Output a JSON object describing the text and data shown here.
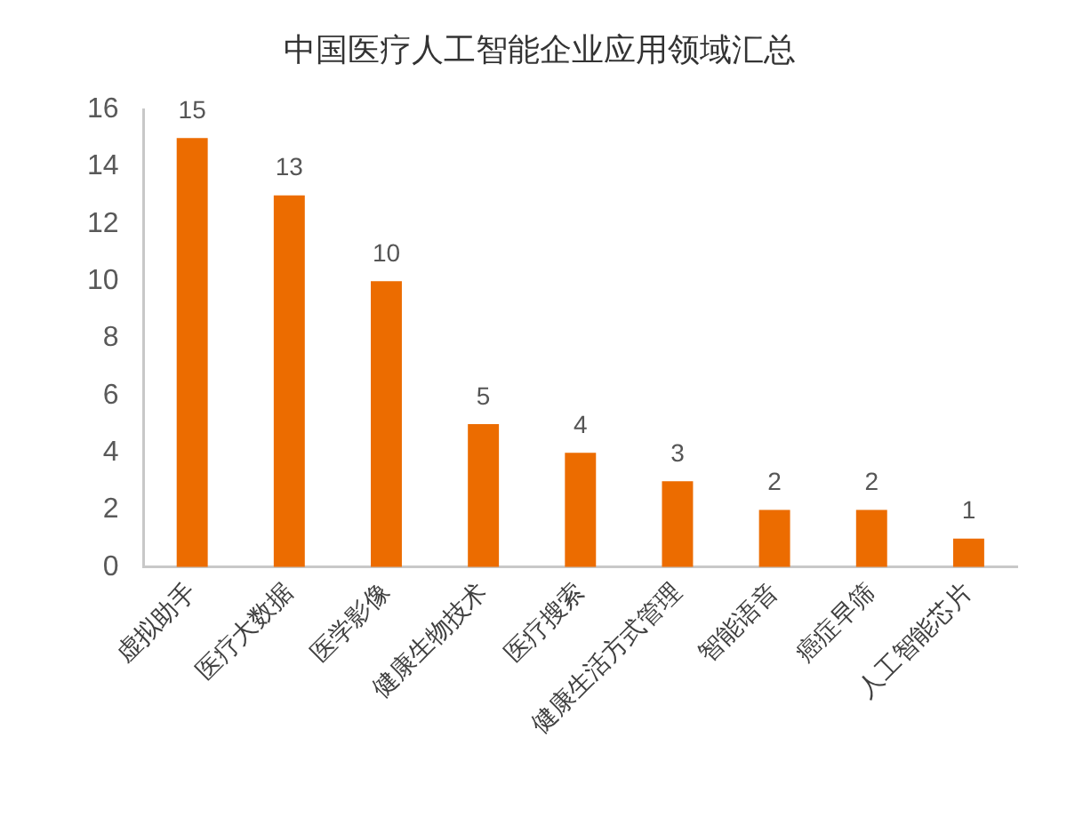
{
  "chart_data": {
    "type": "bar",
    "title": "中国医疗人工智能企业应用领域汇总",
    "categories": [
      "虚拟助手",
      "医疗大数据",
      "医学影像",
      "健康生物技术",
      "医疗搜索",
      "健康生活方式管理",
      "智能语音",
      "癌症早筛",
      "人工智能芯片"
    ],
    "values": [
      15,
      13,
      10,
      5,
      4,
      3,
      2,
      2,
      1
    ],
    "color": "#ec6c00",
    "ylim": [
      0,
      16
    ],
    "yticks": [
      0,
      2,
      4,
      6,
      8,
      10,
      12,
      14,
      16
    ],
    "grid": false,
    "data_labels": true
  }
}
